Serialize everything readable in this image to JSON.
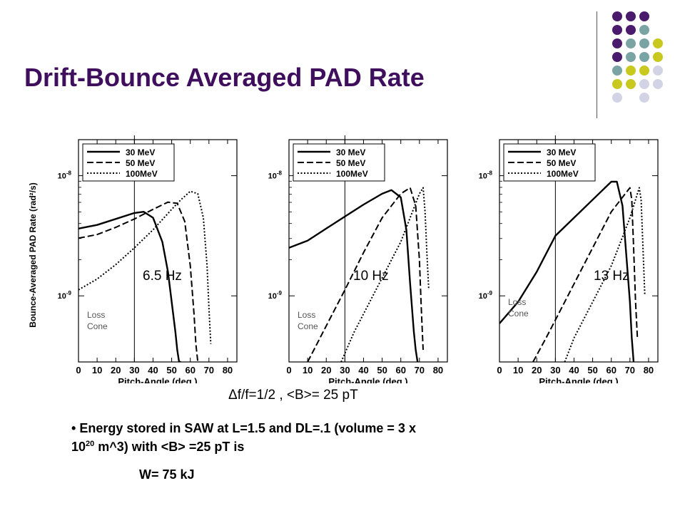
{
  "slide": {
    "title": "Drift-Bounce Averaged PAD Rate",
    "equation": "Δf/f=1/2 , <B>= 25 pT",
    "bullet_line1": "Energy stored in SAW at L=1.5  and DL=.1  (volume = 3 x",
    "bullet_base": "10",
    "bullet_exp": "20",
    "bullet_line2_rest": " m^3) with <B> =25 pT is",
    "energy": "W= 75 kJ"
  },
  "colors": {
    "title": "#3f0f5e",
    "dot_purple": "#4a1a6c",
    "dot_teal": "#7aa3a3",
    "dot_yellow": "#c8c81e",
    "dot_lavender": "#d3d3e6"
  },
  "decor_dots": [
    [
      "dot_purple",
      "dot_purple",
      "dot_purple",
      null
    ],
    [
      "dot_purple",
      "dot_purple",
      "dot_teal",
      null
    ],
    [
      "dot_purple",
      "dot_teal",
      "dot_teal",
      "dot_yellow"
    ],
    [
      "dot_purple",
      "dot_teal",
      "dot_teal",
      "dot_yellow"
    ],
    [
      "dot_teal",
      "dot_yellow",
      "dot_yellow",
      "dot_lavender"
    ],
    [
      "dot_yellow",
      "dot_yellow",
      "dot_lavender",
      "dot_lavender"
    ],
    [
      "dot_lavender",
      null,
      "dot_lavender",
      null
    ]
  ],
  "chart_data": {
    "type": "line",
    "ylabel": "Bounce-Averaged PAD Rate (rad²/s)",
    "xlabel": "Pitch-Angle (deg.)",
    "xlim": [
      0,
      85
    ],
    "ylim_log10": [
      -9.55,
      -7.7
    ],
    "xticks": [
      0,
      10,
      20,
      30,
      40,
      50,
      60,
      70,
      80
    ],
    "ytick_labels": [
      {
        "value": -8,
        "label": "10",
        "exp": "-8"
      },
      {
        "value": -9,
        "label": "10",
        "exp": "-9"
      }
    ],
    "loss_cone_x": 30,
    "loss_cone_label": [
      "Loss",
      "Cone"
    ],
    "legend": [
      "30 MeV",
      "50 MeV",
      "100MeV"
    ],
    "panels": [
      {
        "frequency_label": "6.5 Hz",
        "series": [
          {
            "name": "30 MeV",
            "style": "solid",
            "x": [
              0,
              10,
              20,
              30,
              35,
              40,
              45,
              48,
              50,
              52,
              53,
              54,
              55
            ],
            "y": [
              -8.44,
              -8.41,
              -8.36,
              -8.31,
              -8.3,
              -8.35,
              -8.55,
              -8.8,
              -9.05,
              -9.3,
              -9.45,
              -9.55,
              -9.55
            ]
          },
          {
            "name": "50 MeV",
            "style": "dashed",
            "x": [
              0,
              10,
              20,
              30,
              40,
              48,
              53,
              57,
              60,
              62,
              63,
              64
            ],
            "y": [
              -8.52,
              -8.49,
              -8.43,
              -8.36,
              -8.28,
              -8.22,
              -8.23,
              -8.38,
              -8.75,
              -9.15,
              -9.4,
              -9.55
            ]
          },
          {
            "name": "100MeV",
            "style": "dotted",
            "x": [
              0,
              10,
              20,
              30,
              40,
              50,
              55,
              60,
              64,
              67,
              69,
              70,
              71
            ],
            "y": [
              -8.95,
              -8.86,
              -8.74,
              -8.6,
              -8.45,
              -8.28,
              -8.2,
              -8.13,
              -8.15,
              -8.35,
              -8.75,
              -9.1,
              -9.4
            ]
          }
        ]
      },
      {
        "frequency_label": "10 Hz",
        "series": [
          {
            "name": "30 MeV",
            "style": "solid",
            "x": [
              0,
              10,
              20,
              30,
              40,
              50,
              55,
              60,
              63,
              65,
              67,
              68,
              69
            ],
            "y": [
              -8.6,
              -8.54,
              -8.44,
              -8.34,
              -8.24,
              -8.15,
              -8.12,
              -8.18,
              -8.45,
              -8.9,
              -9.3,
              -9.45,
              -9.55
            ]
          },
          {
            "name": "50 MeV",
            "style": "dashed",
            "x": [
              10,
              15,
              20,
              30,
              40,
              50,
              60,
              65,
              68,
              70,
              71,
              72
            ],
            "y": [
              -9.55,
              -9.4,
              -9.25,
              -8.95,
              -8.64,
              -8.35,
              -8.15,
              -8.1,
              -8.25,
              -8.7,
              -9.1,
              -9.45
            ]
          },
          {
            "name": "100MeV",
            "style": "dotted",
            "x": [
              28,
              35,
              40,
              50,
              60,
              65,
              70,
              72,
              73,
              74,
              75
            ],
            "y": [
              -9.55,
              -9.3,
              -9.15,
              -8.85,
              -8.55,
              -8.35,
              -8.15,
              -8.1,
              -8.3,
              -8.65,
              -8.95
            ]
          }
        ]
      },
      {
        "frequency_label": "13 Hz",
        "series": [
          {
            "name": "30 MeV",
            "style": "solid",
            "x": [
              0,
              10,
              20,
              30,
              40,
              50,
              60,
              63,
              66,
              68,
              70,
              71,
              72
            ],
            "y": [
              -9.23,
              -9.05,
              -8.8,
              -8.5,
              -8.35,
              -8.2,
              -8.05,
              -8.05,
              -8.25,
              -8.65,
              -9.05,
              -9.35,
              -9.55
            ]
          },
          {
            "name": "50 MeV",
            "style": "dashed",
            "x": [
              18,
              25,
              30,
              40,
              50,
              60,
              65,
              70,
              71,
              72,
              73,
              74
            ],
            "y": [
              -9.55,
              -9.35,
              -9.2,
              -8.9,
              -8.6,
              -8.3,
              -8.2,
              -8.1,
              -8.2,
              -8.6,
              -9.05,
              -9.35
            ]
          },
          {
            "name": "100MeV",
            "style": "dotted",
            "x": [
              35,
              40,
              50,
              60,
              65,
              70,
              75,
              76,
              77,
              78
            ],
            "y": [
              -9.55,
              -9.35,
              -9.05,
              -8.75,
              -8.55,
              -8.35,
              -8.1,
              -8.2,
              -8.6,
              -9.0
            ]
          }
        ]
      }
    ]
  }
}
